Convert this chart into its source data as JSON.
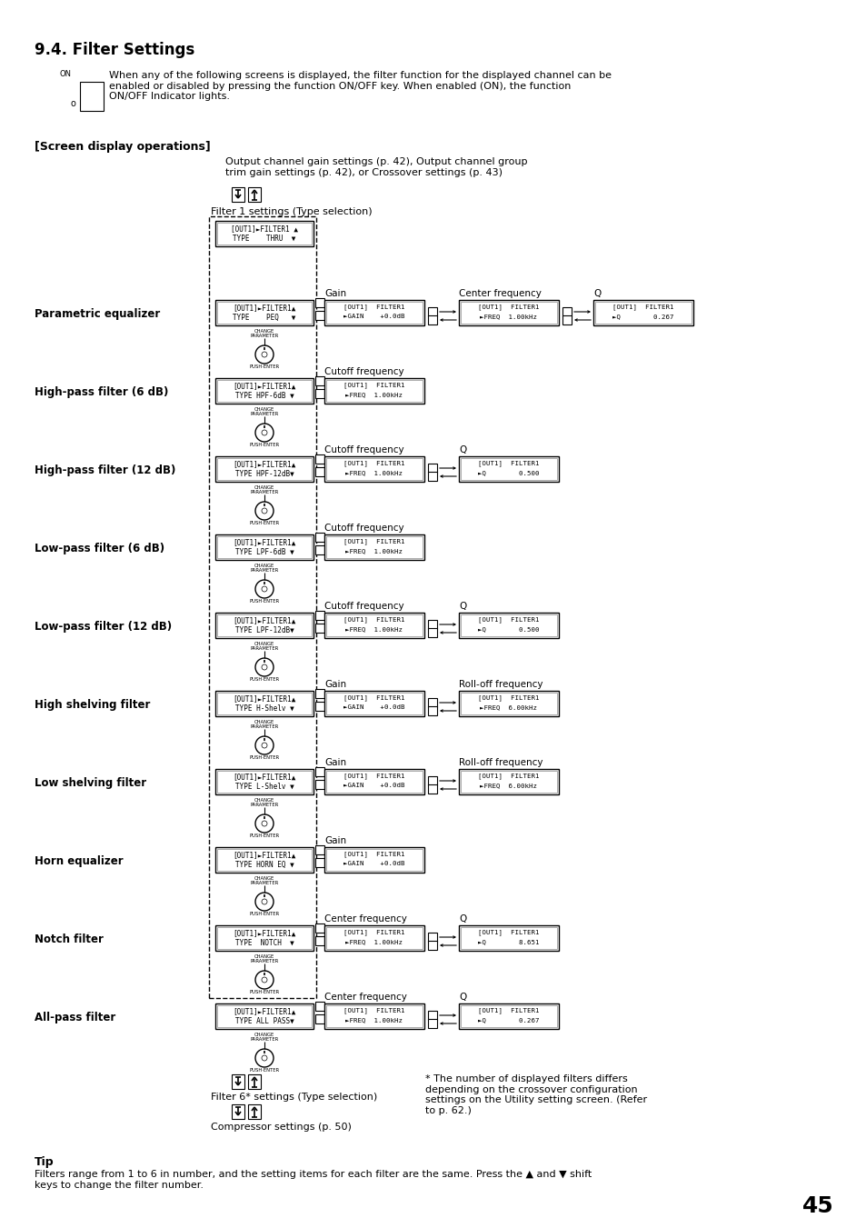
{
  "bg_color": "#ffffff",
  "section_title": "9.4. Filter Settings",
  "intro_text": "When any of the following screens is displayed, the filter function for the displayed channel can be\nenabled or disabled by pressing the function ON/OFF key. When enabled (ON), the function\nON/OFF Indicator lights.",
  "screen_ops_label": "[Screen display operations]",
  "top_arrow_label": "Output channel gain settings (p. 42), Output channel group\ntrim gain settings (p. 42), or Crossover settings (p. 43)",
  "filter1_label": "Filter 1 settings (Type selection)",
  "filter6_label": "Filter 6* settings (Type selection)",
  "compressor_label": "Compressor settings (p. 50)",
  "footnote": "* The number of displayed filters differs\ndepending on the crossover configuration\nsettings on the Utility setting screen. (Refer\nto p. 62.)",
  "tip_title": "Tip",
  "tip_text": "Filters range from 1 to 6 in number, and the setting items for each filter are the same. Press the ▲ and ▼ shift\nkeys to change the filter number.",
  "page_number": "45",
  "top_type_box": {
    "line1": "[OUT1]►FILTER1 ▲",
    "line2": "TYPE    THRU  ▼"
  },
  "filter_rows": [
    {
      "label": "Parametric equalizer",
      "type_line1": "[OUT1]►FILTER1▲",
      "type_line2": "TYPE    PEQ   ▼",
      "params": [
        {
          "label": "Gain",
          "line1": "[OUT1]  FILTER1",
          "line2": "►GAIN    +0.0dB"
        },
        {
          "label": "Center frequency",
          "line1": "[OUT1]  FILTER1",
          "line2": "►FREQ  1.00kHz"
        },
        {
          "label": "Q",
          "line1": "[OUT1]  FILTER1",
          "line2": "►Q        0.267"
        }
      ]
    },
    {
      "label": "High-pass filter (6 dB)",
      "type_line1": "[OUT1]►FILTER1▲",
      "type_line2": "TYPE HPF-6dB ▼",
      "params": [
        {
          "label": "Cutoff frequency",
          "line1": "[OUT1]  FILTER1",
          "line2": "►FREQ  1.00kHz"
        }
      ]
    },
    {
      "label": "High-pass filter (12 dB)",
      "type_line1": "[OUT1]►FILTER1▲",
      "type_line2": "TYPE HPF-12dB▼",
      "params": [
        {
          "label": "Cutoff frequency",
          "line1": "[OUT1]  FILTER1",
          "line2": "►FREQ  1.00kHz"
        },
        {
          "label": "Q",
          "line1": "[OUT1]  FILTER1",
          "line2": "►Q        0.500"
        }
      ]
    },
    {
      "label": "Low-pass filter (6 dB)",
      "type_line1": "[OUT1]►FILTER1▲",
      "type_line2": "TYPE LPF-6dB ▼",
      "params": [
        {
          "label": "Cutoff frequency",
          "line1": "[OUT1]  FILTER1",
          "line2": "►FREQ  1.00kHz"
        }
      ]
    },
    {
      "label": "Low-pass filter (12 dB)",
      "type_line1": "[OUT1]►FILTER1▲",
      "type_line2": "TYPE LPF-12dB▼",
      "params": [
        {
          "label": "Cutoff frequency",
          "line1": "[OUT1]  FILTER1",
          "line2": "►FREQ  1.00kHz"
        },
        {
          "label": "Q",
          "line1": "[OUT1]  FILTER1",
          "line2": "►Q        0.500"
        }
      ]
    },
    {
      "label": "High shelving filter",
      "type_line1": "[OUT1]►FILTER1▲",
      "type_line2": "TYPE H-Shelv ▼",
      "params": [
        {
          "label": "Gain",
          "line1": "[OUT1]  FILTER1",
          "line2": "►GAIN    +0.0dB"
        },
        {
          "label": "Roll-off frequency",
          "line1": "[OUT1]  FILTER1",
          "line2": "►FREQ  6.00kHz"
        }
      ]
    },
    {
      "label": "Low shelving filter",
      "type_line1": "[OUT1]►FILTER1▲",
      "type_line2": "TYPE L-Shelv ▼",
      "params": [
        {
          "label": "Gain",
          "line1": "[OUT1]  FILTER1",
          "line2": "►GAIN    +0.0dB"
        },
        {
          "label": "Roll-off frequency",
          "line1": "[OUT1]  FILTER1",
          "line2": "►FREQ  6.00kHz"
        }
      ]
    },
    {
      "label": "Horn equalizer",
      "type_line1": "[OUT1]►FILTER1▲",
      "type_line2": "TYPE HORN EQ ▼",
      "params": [
        {
          "label": "Gain",
          "line1": "[OUT1]  FILTER1",
          "line2": "►GAIN    +0.0dB"
        }
      ]
    },
    {
      "label": "Notch filter",
      "type_line1": "[OUT1]►FILTER1▲",
      "type_line2": "TYPE  NOTCH  ▼",
      "params": [
        {
          "label": "Center frequency",
          "line1": "[OUT1]  FILTER1",
          "line2": "►FREQ  1.00kHz"
        },
        {
          "label": "Q",
          "line1": "[OUT1]  FILTER1",
          "line2": "►Q        8.651"
        }
      ]
    },
    {
      "label": "All-pass filter",
      "type_line1": "[OUT1]►FILTER1▲",
      "type_line2": "TYPE ALL PASS▼",
      "params": [
        {
          "label": "Center frequency",
          "line1": "[OUT1]  FILTER1",
          "line2": "►FREQ  1.00kHz"
        },
        {
          "label": "Q",
          "line1": "[OUT1]  FILTER1",
          "line2": "►Q        0.267"
        }
      ]
    }
  ]
}
